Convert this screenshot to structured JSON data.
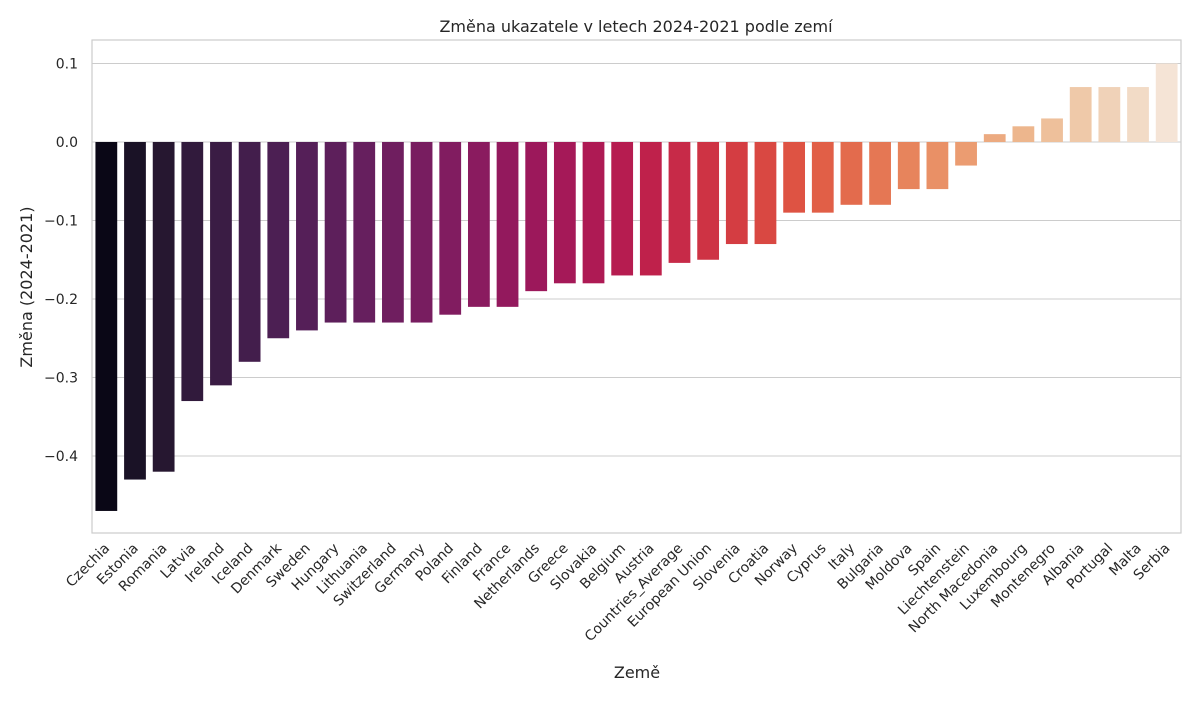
{
  "chart_data": {
    "type": "bar",
    "title": "Změna ukazatele v letech 2024-2021 podle zemí",
    "xlabel": "Země",
    "ylabel": "Změna (2024-2021)",
    "ylim": [
      -0.5,
      0.13
    ],
    "yticks": [
      0.1,
      0.0,
      -0.1,
      -0.2,
      -0.3,
      -0.4
    ],
    "ytick_labels": [
      "0.1",
      "0.0",
      "−0.1",
      "−0.2",
      "−0.3",
      "−0.4"
    ],
    "grid": "horizontal",
    "categories": [
      "Czechia",
      "Estonia",
      "Romania",
      "Latvia",
      "Ireland",
      "Iceland",
      "Denmark",
      "Sweden",
      "Hungary",
      "Lithuania",
      "Switzerland",
      "Germany",
      "Poland",
      "Finland",
      "France",
      "Netherlands",
      "Greece",
      "Slovakia",
      "Belgium",
      "Austria",
      "Countries_Average",
      "European Union",
      "Slovenia",
      "Croatia",
      "Norway",
      "Cyprus",
      "Italy",
      "Bulgaria",
      "Moldova",
      "Spain",
      "Liechtenstein",
      "North Macedonia",
      "Luxembourg",
      "Montenegro",
      "Albania",
      "Portugal",
      "Malta",
      "Serbia"
    ],
    "values": [
      -0.47,
      -0.43,
      -0.42,
      -0.33,
      -0.31,
      -0.28,
      -0.25,
      -0.24,
      -0.23,
      -0.23,
      -0.23,
      -0.23,
      -0.22,
      -0.21,
      -0.21,
      -0.19,
      -0.18,
      -0.18,
      -0.17,
      -0.17,
      -0.154,
      -0.15,
      -0.13,
      -0.13,
      -0.09,
      -0.09,
      -0.08,
      -0.08,
      -0.06,
      -0.06,
      -0.03,
      0.01,
      0.02,
      0.03,
      0.07,
      0.07,
      0.07,
      0.1
    ],
    "palette": "rocket",
    "colors": [
      "#0a0716",
      "#1a1226",
      "#261730",
      "#311a3c",
      "#3a1c44",
      "#431e4c",
      "#4c1f53",
      "#551f58",
      "#5d1f5b",
      "#661f5e",
      "#6f1e5f",
      "#781d60",
      "#811c60",
      "#8a1b5f",
      "#93195d",
      "#9c185b",
      "#a51958",
      "#ae1a54",
      "#b61c50",
      "#bf214b",
      "#c72a48",
      "#ce3344",
      "#d43d42",
      "#d94842",
      "#de5343",
      "#e15f47",
      "#e36b4d",
      "#e57754",
      "#e7845c",
      "#e99066",
      "#eb9c71",
      "#ecaa80",
      "#edb68d",
      "#eec09b",
      "#efc9a9",
      "#f0d2b8",
      "#f2dbc6",
      "#f5e4d6"
    ]
  }
}
